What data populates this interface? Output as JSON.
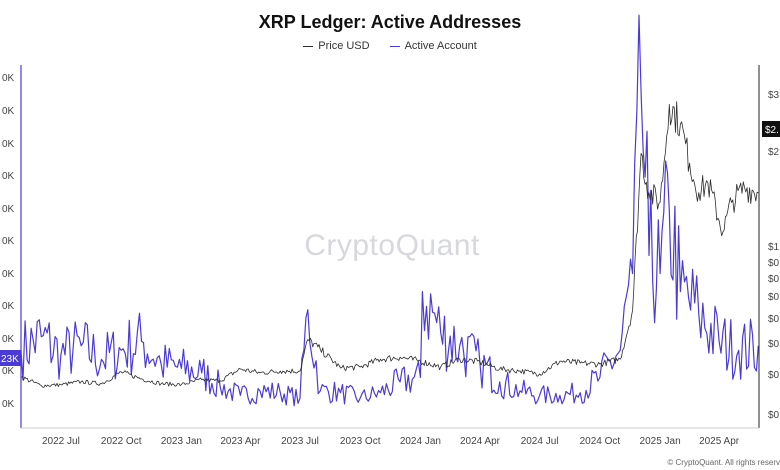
{
  "chart_data": {
    "type": "line",
    "title": "XRP Ledger: Active Addresses",
    "x_ticks": [
      "2022 Jul",
      "2022 Oct",
      "2023 Jan",
      "2023 Apr",
      "2023 Jul",
      "2023 Oct",
      "2024 Jan",
      "2024 Apr",
      "2024 Jul",
      "2024 Oct",
      "2025 Jan",
      "2025 Apr"
    ],
    "left_axis_ticks": [
      "0K",
      "0K",
      "0K",
      "0K",
      "0K",
      "0K",
      "0K",
      "0K",
      "0K",
      "0K",
      "0K"
    ],
    "right_axis_ticks": [
      "$3",
      "$2",
      "$1",
      "$0",
      "$0",
      "$0",
      "$0",
      "$0",
      "$0",
      "$0"
    ],
    "left_badge": "23K",
    "right_badge": "$2.",
    "xlim": [
      "2022-05-01",
      "2025-06-01"
    ],
    "series": [
      {
        "name": "Price USD",
        "color": "#2b2b2b",
        "axis": "right",
        "points": [
          [
            "2022-05-01",
            0.42
          ],
          [
            "2022-06-01",
            0.33
          ],
          [
            "2022-07-01",
            0.34
          ],
          [
            "2022-08-01",
            0.37
          ],
          [
            "2022-09-01",
            0.35
          ],
          [
            "2022-10-01",
            0.47
          ],
          [
            "2022-11-01",
            0.4
          ],
          [
            "2022-12-01",
            0.35
          ],
          [
            "2023-01-01",
            0.34
          ],
          [
            "2023-02-01",
            0.39
          ],
          [
            "2023-03-01",
            0.38
          ],
          [
            "2023-04-01",
            0.5
          ],
          [
            "2023-05-01",
            0.46
          ],
          [
            "2023-06-01",
            0.48
          ],
          [
            "2023-07-01",
            0.48
          ],
          [
            "2023-07-13",
            0.8
          ],
          [
            "2023-08-01",
            0.7
          ],
          [
            "2023-09-01",
            0.51
          ],
          [
            "2023-10-01",
            0.52
          ],
          [
            "2023-11-01",
            0.6
          ],
          [
            "2023-12-01",
            0.62
          ],
          [
            "2024-01-01",
            0.58
          ],
          [
            "2024-02-01",
            0.52
          ],
          [
            "2024-03-01",
            0.6
          ],
          [
            "2024-04-01",
            0.57
          ],
          [
            "2024-05-01",
            0.5
          ],
          [
            "2024-06-01",
            0.48
          ],
          [
            "2024-07-01",
            0.45
          ],
          [
            "2024-08-01",
            0.58
          ],
          [
            "2024-09-01",
            0.56
          ],
          [
            "2024-10-01",
            0.55
          ],
          [
            "2024-11-01",
            0.6
          ],
          [
            "2024-11-20",
            1.1
          ],
          [
            "2024-12-03",
            2.7
          ],
          [
            "2024-12-15",
            2.3
          ],
          [
            "2025-01-01",
            2.2
          ],
          [
            "2025-01-15",
            3.2
          ],
          [
            "2025-02-01",
            3.0
          ],
          [
            "2025-02-15",
            2.6
          ],
          [
            "2025-03-01",
            2.3
          ],
          [
            "2025-03-15",
            2.4
          ],
          [
            "2025-04-07",
            1.9
          ],
          [
            "2025-04-20",
            2.2
          ],
          [
            "2025-05-10",
            2.35
          ],
          [
            "2025-05-31",
            2.3
          ]
        ]
      },
      {
        "name": "Active Account",
        "color": "#4b3bd6",
        "axis": "left",
        "points": [
          [
            "2022-05-01",
            75
          ],
          [
            "2022-06-01",
            90
          ],
          [
            "2022-07-01",
            70
          ],
          [
            "2022-08-01",
            80
          ],
          [
            "2022-09-01",
            65
          ],
          [
            "2022-10-01",
            75
          ],
          [
            "2022-11-01",
            85
          ],
          [
            "2022-12-01",
            60
          ],
          [
            "2023-01-01",
            55
          ],
          [
            "2023-02-01",
            50
          ],
          [
            "2023-03-01",
            35
          ],
          [
            "2023-04-01",
            25
          ],
          [
            "2023-05-01",
            30
          ],
          [
            "2023-06-01",
            28
          ],
          [
            "2023-07-01",
            22
          ],
          [
            "2023-07-13",
            120
          ],
          [
            "2023-08-01",
            30
          ],
          [
            "2023-09-01",
            28
          ],
          [
            "2023-10-01",
            22
          ],
          [
            "2023-11-01",
            28
          ],
          [
            "2023-12-01",
            40
          ],
          [
            "2024-01-01",
            45
          ],
          [
            "2024-01-04",
            140
          ],
          [
            "2024-02-01",
            95
          ],
          [
            "2024-03-01",
            80
          ],
          [
            "2024-04-01",
            60
          ],
          [
            "2024-05-01",
            40
          ],
          [
            "2024-06-01",
            30
          ],
          [
            "2024-07-01",
            25
          ],
          [
            "2024-08-01",
            25
          ],
          [
            "2024-09-01",
            28
          ],
          [
            "2024-10-01",
            45
          ],
          [
            "2024-11-01",
            75
          ],
          [
            "2024-11-20",
            160
          ],
          [
            "2024-12-03",
            360
          ],
          [
            "2024-12-15",
            180
          ],
          [
            "2025-01-01",
            160
          ],
          [
            "2025-01-15",
            230
          ],
          [
            "2025-02-01",
            140
          ],
          [
            "2025-03-01",
            115
          ],
          [
            "2025-04-01",
            85
          ],
          [
            "2025-05-01",
            75
          ],
          [
            "2025-05-31",
            80
          ]
        ]
      }
    ],
    "watermark": "CryptoQuant",
    "grid": false,
    "legend_position": "top-center"
  },
  "footer": "© CryptoQuant. All rights reserv"
}
